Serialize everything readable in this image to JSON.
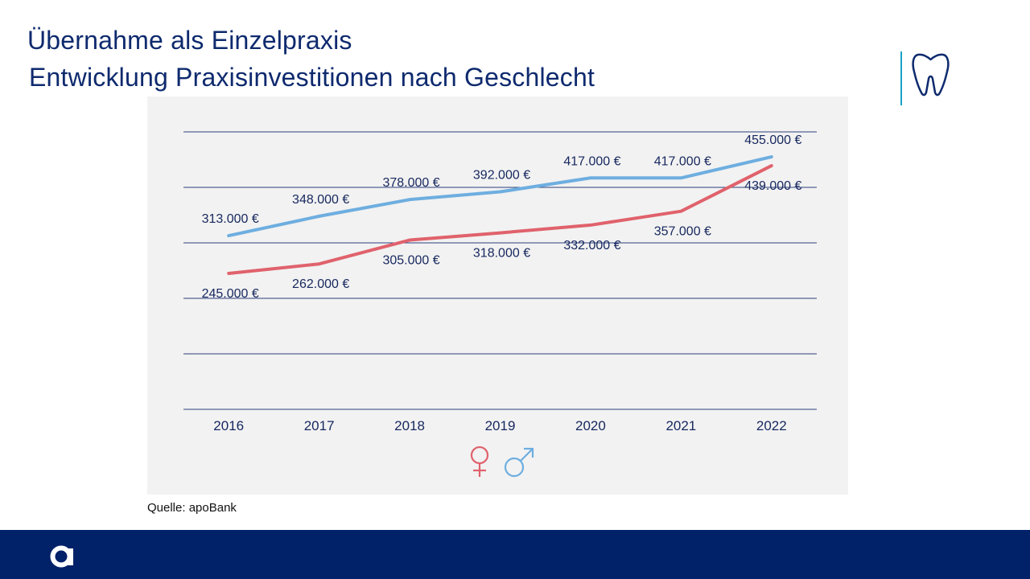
{
  "header": {
    "title": "Übernahme als Einzelpraxis",
    "subtitle": "Entwicklung Praxisinvestitionen nach Geschlecht"
  },
  "icons": {
    "logo": "tooth-icon",
    "brand": "apobank-logo-icon",
    "legend_female": "female-symbol-icon",
    "legend_male": "male-symbol-icon"
  },
  "colors": {
    "primary": "#012169",
    "accent": "#1aa0c8",
    "female": "#e0626c",
    "male": "#6eaee0",
    "panel": "#f2f2f2"
  },
  "chart_data": {
    "type": "line",
    "title": "Entwicklung Praxisinvestitionen nach Geschlecht",
    "categories": [
      "2016",
      "2017",
      "2018",
      "2019",
      "2020",
      "2021",
      "2022"
    ],
    "ylim": [
      0,
      500000
    ],
    "grid": true,
    "legend": "bottom-center",
    "series": [
      {
        "name": "männlich",
        "symbol": "♂",
        "color": "#6eaee0",
        "label_position": "above",
        "values": [
          313000,
          348000,
          378000,
          392000,
          417000,
          417000,
          455000
        ],
        "labels": [
          "313.000 €",
          "348.000 €",
          "378.000 €",
          "392.000 €",
          "417.000 €",
          "417.000 €",
          "455.000 €"
        ]
      },
      {
        "name": "weiblich",
        "symbol": "♀",
        "color": "#e0626c",
        "label_position": "below",
        "values": [
          245000,
          262000,
          305000,
          318000,
          332000,
          357000,
          439000
        ],
        "labels": [
          "245.000 €",
          "262.000 €",
          "305.000 €",
          "318.000 €",
          "332.000 €",
          "357.000 €",
          "439.000 €"
        ]
      }
    ]
  },
  "footer": {
    "source": "Quelle: apoBank"
  }
}
